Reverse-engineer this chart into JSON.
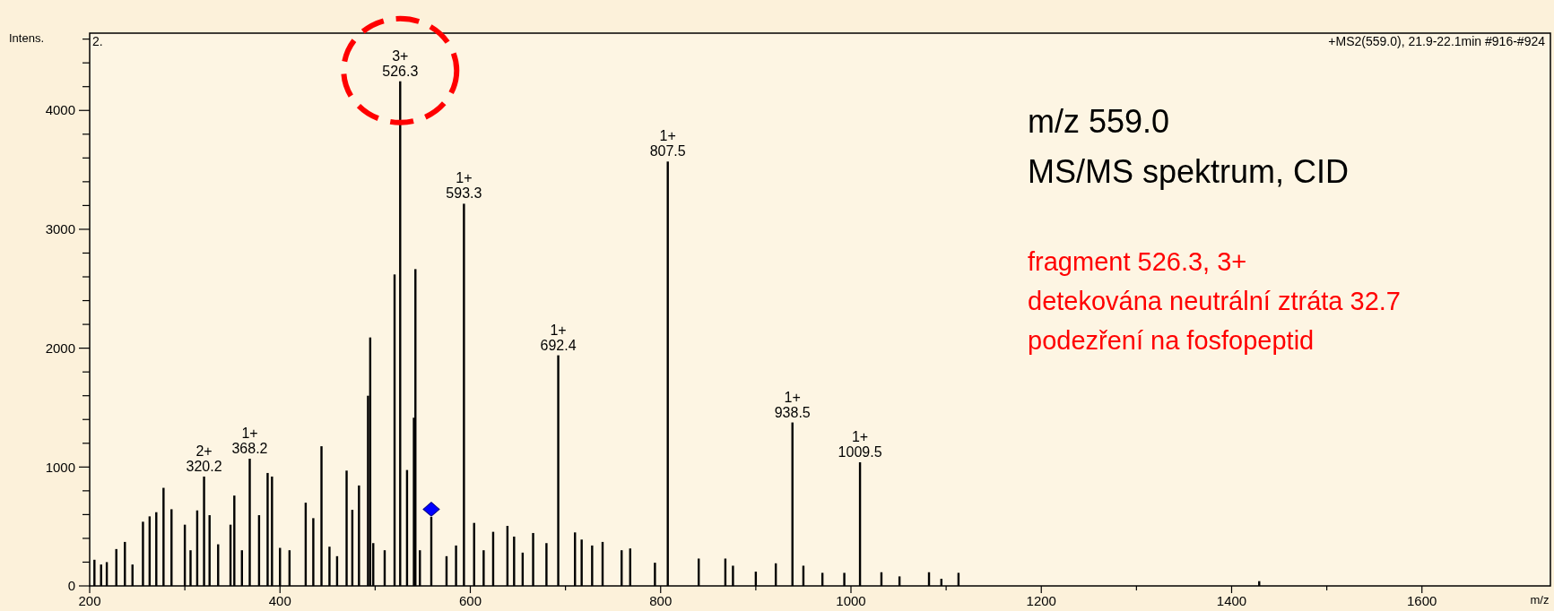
{
  "chart_data": {
    "type": "bar",
    "title": "m/z 559.0",
    "subtitle": "MS/MS spektrum, CID",
    "xlabel": "m/z",
    "ylabel": "Intens.",
    "annotations": [
      "2.",
      "+MS2(559.0), 21.9-22.1min #916-#924",
      "fragment 526.3, 3+",
      "detekována neutrální ztráta 32.7",
      "podezření na fosfopeptid",
      {
        "text": "2+\n320.2",
        "x": 320.2,
        "y": 920
      },
      {
        "text": "1+\n368.2",
        "x": 368.2,
        "y": 1070
      },
      {
        "text": "3+\n526.3",
        "x": 526.3,
        "y": 4245
      },
      {
        "text": "1+\n593.3",
        "x": 593.3,
        "y": 3215
      },
      {
        "text": "1+\n692.4",
        "x": 692.4,
        "y": 1940
      },
      {
        "text": "1+\n807.5",
        "x": 807.5,
        "y": 3570
      },
      {
        "text": "1+\n938.5",
        "x": 938.5,
        "y": 1375
      },
      {
        "text": "1+\n1009.5",
        "x": 1009.5,
        "y": 1040
      }
    ],
    "series": [
      {
        "color": "#000000",
        "x": [
          205,
          212,
          218,
          228,
          237,
          245,
          256,
          263,
          270,
          277.6,
          286,
          300,
          306,
          313,
          320.2,
          326,
          335,
          348,
          352,
          360,
          368.2,
          378,
          387,
          391.6,
          400,
          410,
          427,
          435,
          443.6,
          452,
          460,
          470,
          476,
          483,
          492.5,
          494.8,
          498,
          510,
          520.4,
          526.3,
          533.5,
          540.7,
          542.3,
          547,
          559,
          575,
          585,
          593.3,
          604,
          614,
          624,
          639,
          646,
          655,
          666,
          680,
          692.4,
          710,
          717,
          728,
          739,
          759,
          768,
          794,
          807.5,
          840,
          868,
          876,
          900,
          921,
          938.5,
          950,
          970,
          993,
          1009.5,
          1032,
          1051,
          1082,
          1095,
          1113,
          1429
        ],
        "values": [
          220,
          180,
          200,
          310,
          370,
          180,
          540,
          585,
          620,
          825,
          645,
          515,
          300,
          635,
          920,
          595,
          350,
          515,
          760,
          300,
          1070,
          595,
          950,
          920,
          320,
          300,
          700,
          570,
          1175,
          330,
          250,
          970,
          640,
          845,
          1600,
          2090,
          360,
          300,
          2620,
          4245,
          975,
          1415,
          2665,
          300,
          580,
          250,
          340,
          3215,
          530,
          300,
          455,
          505,
          415,
          280,
          445,
          360,
          1940,
          450,
          390,
          340,
          370,
          300,
          315,
          195,
          3570,
          230,
          230,
          170,
          120,
          190,
          1375,
          170,
          110,
          110,
          1040,
          115,
          80,
          115,
          60,
          110,
          40
        ]
      },
      {
        "type": "scatter",
        "color": "#0000ff",
        "marker": "diamond",
        "x": [
          559.0
        ],
        "values": [
          645
        ]
      }
    ],
    "xlim": [
      200,
      1735
    ],
    "xticks": [
      200,
      {
        "value": 300,
        "label": null
      },
      400,
      {
        "value": 500,
        "label": null
      },
      600,
      {
        "value": 700,
        "label": null
      },
      800,
      {
        "value": 900,
        "label": null
      },
      1000,
      {
        "value": 1100,
        "label": null
      },
      1200,
      {
        "value": 1300,
        "label": null
      },
      1400,
      {
        "value": 1500,
        "label": null
      },
      1600
    ],
    "ylim": [
      0,
      4650
    ],
    "yticks": [
      0,
      {
        "value": 200,
        "label": null
      },
      {
        "value": 400,
        "label": null
      },
      {
        "value": 600,
        "label": null
      },
      {
        "value": 800,
        "label": null
      },
      1000,
      {
        "value": 1200,
        "label": null
      },
      {
        "value": 1400,
        "label": null
      },
      {
        "value": 1600,
        "label": null
      },
      {
        "value": 1800,
        "label": null
      },
      2000,
      {
        "value": 2200,
        "label": null
      },
      {
        "value": 2400,
        "label": null
      },
      {
        "value": 2600,
        "label": null
      },
      {
        "value": 2800,
        "label": null
      },
      3000,
      {
        "value": 3200,
        "label": null
      },
      {
        "value": 3400,
        "label": null
      },
      {
        "value": 3600,
        "label": null
      },
      {
        "value": 3800,
        "label": null
      },
      4000,
      {
        "value": 4200,
        "label": null
      },
      {
        "value": 4400,
        "label": null
      },
      {
        "value": 4600,
        "label": null
      }
    ]
  }
}
